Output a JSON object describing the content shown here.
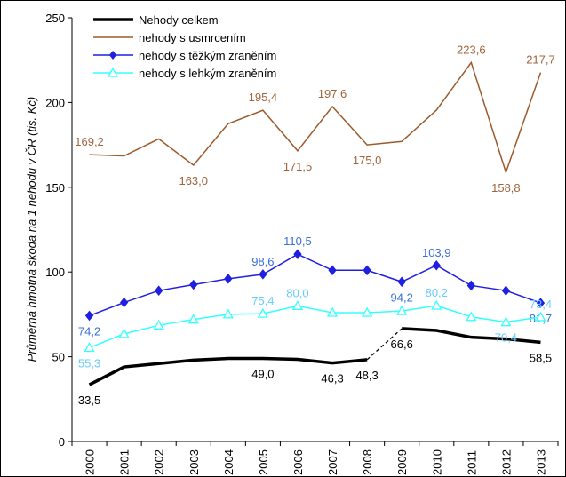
{
  "chart_data": {
    "type": "line",
    "y_label": "Průměrná hmotná škoda na 1 nehodu v ČR (tis. Kč)",
    "categories": [
      "2000",
      "2001",
      "2002",
      "2003",
      "2004",
      "2005",
      "2006",
      "2007",
      "2008",
      "2009",
      "2010",
      "2011",
      "2012",
      "2013"
    ],
    "ylim": [
      0,
      250
    ],
    "yticks": [
      0,
      50,
      100,
      150,
      200,
      250
    ],
    "series": [
      {
        "name": "Nehody celkem",
        "color": "#000000",
        "marker": "none",
        "dashed_segments": [
          8
        ],
        "values": [
          33.5,
          44,
          46,
          48,
          49,
          49.0,
          48.5,
          46.3,
          48.3,
          66.6,
          65.5,
          61.5,
          60.5,
          58.5
        ],
        "value_labels": [
          "33,5",
          null,
          null,
          null,
          null,
          "49,0",
          null,
          "46,3",
          "48,3",
          "66,6",
          null,
          null,
          null,
          "58,5"
        ]
      },
      {
        "name": "nehody s usmrcením",
        "color": "#9c5a2a",
        "marker": "none",
        "values": [
          169.2,
          168.5,
          178.5,
          163.0,
          187.5,
          195.4,
          171.5,
          197.6,
          175.0,
          177,
          195.5,
          223.6,
          158.8,
          217.7
        ],
        "value_labels": [
          "169,2",
          null,
          null,
          "163,0",
          null,
          "195,4",
          "171,5",
          "197,6",
          "175,0",
          null,
          null,
          "223,6",
          "158,8",
          "217,7"
        ]
      },
      {
        "name": "nehody s těžkým zraněním",
        "color": "#1f1fe0",
        "marker": "diamond",
        "values": [
          74.2,
          82,
          89,
          92.5,
          96,
          98.6,
          110.5,
          101,
          101,
          94.2,
          103.9,
          92,
          89,
          81.7
        ],
        "value_labels": [
          "74,2",
          null,
          null,
          null,
          null,
          "98,6",
          "110,5",
          null,
          null,
          "94,2",
          "103,9",
          null,
          null,
          "81,7"
        ]
      },
      {
        "name": "nehody s lehkým zraněním",
        "color": "#33ffff",
        "marker": "triangle",
        "values": [
          55.3,
          63.5,
          68.5,
          72,
          75,
          75.4,
          80.0,
          76,
          76,
          77,
          80.2,
          73.5,
          70.4,
          73.4
        ],
        "value_labels": [
          "55,3",
          null,
          null,
          null,
          null,
          "75,4",
          "80,0",
          null,
          null,
          null,
          "80,2",
          null,
          "70,4",
          "73,4"
        ]
      }
    ]
  }
}
